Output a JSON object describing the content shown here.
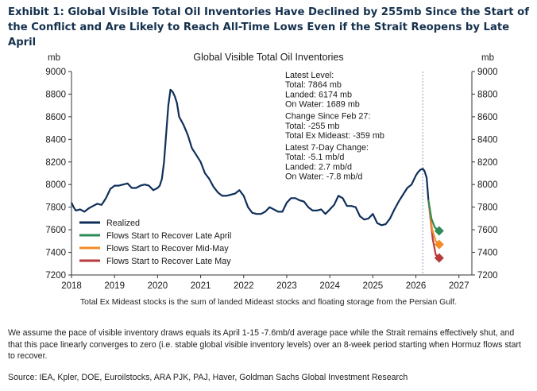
{
  "exhibit_title": "Exhibit 1: Global Visible Total Oil Inventories Have Declined by 255mb Since the Start of the Conflict and Are Likely to Reach All-Time Lows Even if the Strait Reopens by Late April",
  "note_below_chart": "Total Ex Mideast stocks is the sum of landed Mideast stocks and floating storage from the Persian Gulf.",
  "assumption_text": "We assume the pace of visible inventory draws equals its April 1-15 -7.6mb/d average pace while the Strait remains effectively shut, and that this pace linearly converges to zero (i.e. stable global visible inventory levels) over an 8-week period starting when Hormuz flows start to recover.",
  "source_text": "Source: IEA, Kpler, DOE, Euroilstocks, ARA PJK, PAJ, Haver, Goldman Sachs Global Investment Research",
  "colors": {
    "realized": "#0f2f5a",
    "late_april": "#2e8b57",
    "mid_may": "#f28c28",
    "late_may": "#b83b3b",
    "marker_line": "#8aa6c1"
  },
  "chart_data": {
    "type": "line",
    "title": "Global Visible Total Oil Inventories",
    "ylabel_left": "mb",
    "ylabel_right": "mb",
    "ylim": [
      7200,
      9000
    ],
    "yticks": [
      7200,
      7400,
      7600,
      7800,
      8000,
      8200,
      8400,
      8600,
      8800,
      9000
    ],
    "xlim": [
      2018.0,
      2027.3
    ],
    "xticks": [
      "2018",
      "2019",
      "2020",
      "2021",
      "2022",
      "2023",
      "2024",
      "2025",
      "2026",
      "2027"
    ],
    "grid": false,
    "vertical_marker_x": 2026.16,
    "legend_position": "bottom-left",
    "annotation_lines": [
      "Latest Level:",
      "Total: 7864 mb",
      "Landed: 6174 mb",
      "On Water: 1689 mb",
      "Change Since Feb 27:",
      "Total: -255 mb",
      "Total Ex Mideast: -359 mb",
      "Latest 7-Day Change:",
      "Total: -5.1 mb/d",
      "Landed: 2.7 mb/d",
      "On Water: -7.8 mb/d"
    ],
    "series": [
      {
        "name": "Realized",
        "style": "line",
        "x": [
          2018.0,
          2018.05,
          2018.1,
          2018.2,
          2018.3,
          2018.4,
          2018.5,
          2018.6,
          2018.7,
          2018.8,
          2018.9,
          2019.0,
          2019.1,
          2019.2,
          2019.3,
          2019.4,
          2019.5,
          2019.6,
          2019.7,
          2019.8,
          2019.9,
          2020.0,
          2020.05,
          2020.1,
          2020.15,
          2020.2,
          2020.25,
          2020.3,
          2020.35,
          2020.4,
          2020.45,
          2020.5,
          2020.6,
          2020.7,
          2020.8,
          2020.9,
          2021.0,
          2021.1,
          2021.2,
          2021.3,
          2021.4,
          2021.5,
          2021.6,
          2021.7,
          2021.8,
          2021.9,
          2022.0,
          2022.1,
          2022.2,
          2022.3,
          2022.4,
          2022.5,
          2022.6,
          2022.7,
          2022.8,
          2022.9,
          2023.0,
          2023.1,
          2023.2,
          2023.3,
          2023.4,
          2023.5,
          2023.6,
          2023.7,
          2023.8,
          2023.9,
          2024.0,
          2024.1,
          2024.2,
          2024.3,
          2024.4,
          2024.5,
          2024.6,
          2024.7,
          2024.8,
          2024.9,
          2025.0,
          2025.1,
          2025.2,
          2025.3,
          2025.4,
          2025.5,
          2025.6,
          2025.7,
          2025.8,
          2025.9,
          2026.0,
          2026.05,
          2026.1,
          2026.16,
          2026.2,
          2026.25,
          2026.29
        ],
        "y": [
          7840,
          7800,
          7770,
          7780,
          7760,
          7790,
          7810,
          7830,
          7820,
          7880,
          7960,
          7990,
          7990,
          8000,
          8010,
          7970,
          7970,
          7990,
          8000,
          7990,
          7950,
          7970,
          7990,
          8050,
          8200,
          8450,
          8700,
          8840,
          8820,
          8780,
          8720,
          8600,
          8530,
          8440,
          8320,
          8260,
          8200,
          8100,
          8050,
          7980,
          7930,
          7900,
          7900,
          7910,
          7920,
          7950,
          7900,
          7800,
          7750,
          7740,
          7740,
          7760,
          7800,
          7780,
          7760,
          7760,
          7840,
          7880,
          7880,
          7860,
          7850,
          7800,
          7770,
          7770,
          7780,
          7740,
          7780,
          7820,
          7900,
          7880,
          7810,
          7810,
          7800,
          7720,
          7690,
          7700,
          7740,
          7660,
          7640,
          7650,
          7700,
          7780,
          7850,
          7910,
          7970,
          8000,
          8080,
          8110,
          8130,
          8140,
          8120,
          8060,
          7864
        ]
      },
      {
        "name": "Flows Start to Recover Late April",
        "style": "line+diamond",
        "x": [
          2026.29,
          2026.36,
          2026.44,
          2026.54
        ],
        "y": [
          7864,
          7700,
          7620,
          7590
        ]
      },
      {
        "name": "Flows Start to Recover Mid-May",
        "style": "line+diamond",
        "x": [
          2026.29,
          2026.38,
          2026.46,
          2026.54
        ],
        "y": [
          7864,
          7600,
          7500,
          7470
        ]
      },
      {
        "name": "Flows Start to Recover Late May",
        "style": "line+diamond",
        "x": [
          2026.29,
          2026.39,
          2026.46,
          2026.54
        ],
        "y": [
          7864,
          7520,
          7380,
          7350
        ]
      }
    ]
  }
}
